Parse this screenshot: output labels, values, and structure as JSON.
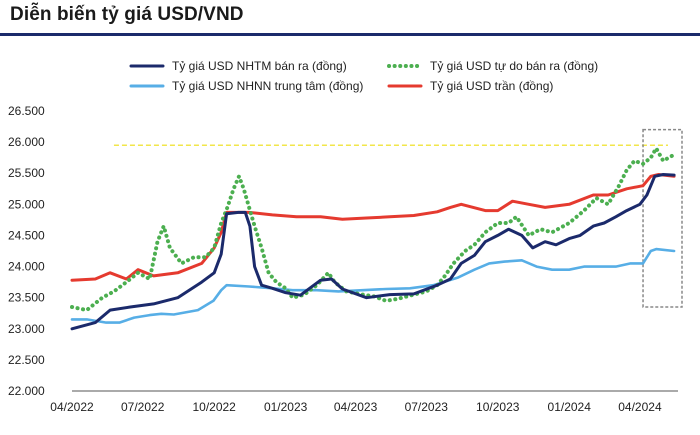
{
  "header": {
    "title": "Diễn biến tỷ giá USD/VND"
  },
  "chart_data": {
    "type": "line",
    "title": "Diễn biến tỷ giá USD/VND",
    "xlabel": "",
    "ylabel": "",
    "x_range": [
      "2022-04-01",
      "2024-05-20"
    ],
    "ylim": [
      22000,
      26500
    ],
    "x_ticks": [
      "04/2022",
      "07/2022",
      "10/2022",
      "01/2023",
      "04/2023",
      "07/2023",
      "10/2023",
      "01/2024",
      "04/2024"
    ],
    "y_ticks": [
      "22.000",
      "22.500",
      "23.000",
      "23.500",
      "24.000",
      "24.500",
      "25.000",
      "25.500",
      "26.000",
      "26.500"
    ],
    "grid": false,
    "legend_position": "top",
    "reference_line": {
      "y": 25950,
      "style": "dashed",
      "color": "#f2e64a"
    },
    "highlight_box": {
      "x_from": "2024-04-05",
      "x_to": "2024-05-20",
      "y_from": 23350,
      "y_to": 26200,
      "style": "dotted"
    },
    "series": [
      {
        "name": "Tỷ giá USD NHTM bán ra (đồng)",
        "color": "#1b2a6b",
        "style": "solid",
        "points": [
          [
            "2022-04-01",
            23000
          ],
          [
            "2022-05-01",
            23100
          ],
          [
            "2022-05-20",
            23300
          ],
          [
            "2022-06-15",
            23350
          ],
          [
            "2022-07-15",
            23400
          ],
          [
            "2022-08-15",
            23500
          ],
          [
            "2022-09-15",
            23750
          ],
          [
            "2022-10-01",
            23900
          ],
          [
            "2022-10-10",
            24200
          ],
          [
            "2022-10-17",
            24850
          ],
          [
            "2022-11-01",
            24870
          ],
          [
            "2022-11-10",
            24870
          ],
          [
            "2022-11-16",
            24650
          ],
          [
            "2022-11-22",
            24000
          ],
          [
            "2022-12-01",
            23700
          ],
          [
            "2022-12-15",
            23650
          ],
          [
            "2023-01-01",
            23580
          ],
          [
            "2023-01-20",
            23540
          ],
          [
            "2023-02-15",
            23780
          ],
          [
            "2023-03-01",
            23800
          ],
          [
            "2023-03-15",
            23640
          ],
          [
            "2023-04-15",
            23500
          ],
          [
            "2023-05-15",
            23550
          ],
          [
            "2023-06-15",
            23560
          ],
          [
            "2023-07-15",
            23700
          ],
          [
            "2023-08-01",
            23800
          ],
          [
            "2023-08-15",
            24050
          ],
          [
            "2023-09-01",
            24180
          ],
          [
            "2023-09-15",
            24400
          ],
          [
            "2023-10-01",
            24500
          ],
          [
            "2023-10-15",
            24600
          ],
          [
            "2023-11-01",
            24500
          ],
          [
            "2023-11-15",
            24300
          ],
          [
            "2023-12-01",
            24400
          ],
          [
            "2023-12-15",
            24350
          ],
          [
            "2024-01-01",
            24450
          ],
          [
            "2024-01-15",
            24500
          ],
          [
            "2024-02-01",
            24650
          ],
          [
            "2024-02-15",
            24700
          ],
          [
            "2024-03-01",
            24800
          ],
          [
            "2024-03-15",
            24900
          ],
          [
            "2024-04-01",
            25000
          ],
          [
            "2024-04-10",
            25150
          ],
          [
            "2024-04-20",
            25450
          ],
          [
            "2024-05-01",
            25480
          ],
          [
            "2024-05-15",
            25470
          ]
        ]
      },
      {
        "name": "Tỷ giá USD tự do bán ra (đồng)",
        "color": "#4caf50",
        "style": "dotted",
        "points": [
          [
            "2022-04-01",
            23350
          ],
          [
            "2022-04-20",
            23300
          ],
          [
            "2022-05-10",
            23500
          ],
          [
            "2022-05-25",
            23600
          ],
          [
            "2022-06-10",
            23750
          ],
          [
            "2022-06-25",
            23900
          ],
          [
            "2022-07-10",
            23800
          ],
          [
            "2022-07-20",
            24400
          ],
          [
            "2022-07-28",
            24650
          ],
          [
            "2022-08-05",
            24300
          ],
          [
            "2022-08-20",
            24050
          ],
          [
            "2022-09-05",
            24150
          ],
          [
            "2022-09-20",
            24150
          ],
          [
            "2022-10-01",
            24300
          ],
          [
            "2022-10-10",
            24700
          ],
          [
            "2022-10-18",
            24950
          ],
          [
            "2022-10-26",
            25250
          ],
          [
            "2022-11-02",
            25450
          ],
          [
            "2022-11-08",
            25250
          ],
          [
            "2022-11-15",
            24950
          ],
          [
            "2022-11-22",
            24650
          ],
          [
            "2022-12-01",
            24300
          ],
          [
            "2022-12-10",
            23900
          ],
          [
            "2022-12-20",
            23750
          ],
          [
            "2023-01-01",
            23650
          ],
          [
            "2023-01-10",
            23500
          ],
          [
            "2023-01-25",
            23550
          ],
          [
            "2023-02-10",
            23700
          ],
          [
            "2023-02-25",
            23900
          ],
          [
            "2023-03-05",
            23750
          ],
          [
            "2023-03-20",
            23600
          ],
          [
            "2023-04-10",
            23550
          ],
          [
            "2023-04-25",
            23520
          ],
          [
            "2023-05-10",
            23450
          ],
          [
            "2023-05-25",
            23480
          ],
          [
            "2023-06-15",
            23550
          ],
          [
            "2023-07-01",
            23600
          ],
          [
            "2023-07-15",
            23700
          ],
          [
            "2023-07-25",
            23850
          ],
          [
            "2023-08-05",
            24050
          ],
          [
            "2023-08-20",
            24250
          ],
          [
            "2023-09-01",
            24350
          ],
          [
            "2023-09-15",
            24550
          ],
          [
            "2023-10-01",
            24700
          ],
          [
            "2023-10-15",
            24700
          ],
          [
            "2023-10-25",
            24800
          ],
          [
            "2023-11-10",
            24500
          ],
          [
            "2023-11-25",
            24600
          ],
          [
            "2023-12-10",
            24550
          ],
          [
            "2024-01-01",
            24700
          ],
          [
            "2024-01-20",
            24900
          ],
          [
            "2024-02-05",
            25100
          ],
          [
            "2024-02-20",
            25000
          ],
          [
            "2024-03-05",
            25300
          ],
          [
            "2024-03-15",
            25550
          ],
          [
            "2024-03-25",
            25700
          ],
          [
            "2024-04-05",
            25650
          ],
          [
            "2024-04-15",
            25750
          ],
          [
            "2024-04-22",
            25900
          ],
          [
            "2024-05-01",
            25700
          ],
          [
            "2024-05-15",
            25800
          ]
        ]
      },
      {
        "name": "Tỷ giá USD NHNN trung tâm (đồng)",
        "color": "#57aee6",
        "style": "solid",
        "points": [
          [
            "2022-04-01",
            23150
          ],
          [
            "2022-04-20",
            23150
          ],
          [
            "2022-05-15",
            23100
          ],
          [
            "2022-06-01",
            23100
          ],
          [
            "2022-06-20",
            23180
          ],
          [
            "2022-07-10",
            23220
          ],
          [
            "2022-07-25",
            23240
          ],
          [
            "2022-08-10",
            23230
          ],
          [
            "2022-09-10",
            23300
          ],
          [
            "2022-09-30",
            23450
          ],
          [
            "2022-10-10",
            23620
          ],
          [
            "2022-10-17",
            23700
          ],
          [
            "2022-11-15",
            23680
          ],
          [
            "2022-12-15",
            23650
          ],
          [
            "2023-01-10",
            23620
          ],
          [
            "2023-02-10",
            23620
          ],
          [
            "2023-03-10",
            23600
          ],
          [
            "2023-04-10",
            23620
          ],
          [
            "2023-05-10",
            23640
          ],
          [
            "2023-06-10",
            23650
          ],
          [
            "2023-07-10",
            23700
          ],
          [
            "2023-08-10",
            23820
          ],
          [
            "2023-09-01",
            23950
          ],
          [
            "2023-09-20",
            24050
          ],
          [
            "2023-10-10",
            24080
          ],
          [
            "2023-11-01",
            24100
          ],
          [
            "2023-11-20",
            24000
          ],
          [
            "2023-12-10",
            23950
          ],
          [
            "2024-01-01",
            23950
          ],
          [
            "2024-01-20",
            24000
          ],
          [
            "2024-02-10",
            24000
          ],
          [
            "2024-03-01",
            24000
          ],
          [
            "2024-03-20",
            24050
          ],
          [
            "2024-04-05",
            24050
          ],
          [
            "2024-04-15",
            24250
          ],
          [
            "2024-04-22",
            24280
          ],
          [
            "2024-05-15",
            24250
          ]
        ]
      },
      {
        "name": "Tỷ giá USD trần (đồng)",
        "color": "#e53a2f",
        "style": "solid",
        "points": [
          [
            "2022-04-01",
            23780
          ],
          [
            "2022-05-01",
            23800
          ],
          [
            "2022-05-20",
            23900
          ],
          [
            "2022-06-10",
            23800
          ],
          [
            "2022-06-25",
            23950
          ],
          [
            "2022-07-15",
            23850
          ],
          [
            "2022-08-15",
            23900
          ],
          [
            "2022-09-15",
            24050
          ],
          [
            "2022-10-01",
            24300
          ],
          [
            "2022-10-10",
            24550
          ],
          [
            "2022-10-17",
            24870
          ],
          [
            "2022-11-15",
            24870
          ],
          [
            "2022-12-15",
            24830
          ],
          [
            "2023-01-15",
            24800
          ],
          [
            "2023-02-15",
            24800
          ],
          [
            "2023-03-15",
            24760
          ],
          [
            "2023-04-15",
            24780
          ],
          [
            "2023-05-15",
            24800
          ],
          [
            "2023-06-15",
            24820
          ],
          [
            "2023-07-15",
            24880
          ],
          [
            "2023-08-01",
            24950
          ],
          [
            "2023-08-15",
            25000
          ],
          [
            "2023-09-15",
            24900
          ],
          [
            "2023-10-01",
            24900
          ],
          [
            "2023-10-20",
            25050
          ],
          [
            "2023-11-10",
            25000
          ],
          [
            "2023-12-01",
            24950
          ],
          [
            "2024-01-01",
            25000
          ],
          [
            "2024-02-01",
            25150
          ],
          [
            "2024-02-20",
            25150
          ],
          [
            "2024-03-15",
            25250
          ],
          [
            "2024-04-05",
            25300
          ],
          [
            "2024-04-15",
            25450
          ],
          [
            "2024-04-25",
            25480
          ],
          [
            "2024-05-15",
            25450
          ]
        ]
      }
    ]
  }
}
